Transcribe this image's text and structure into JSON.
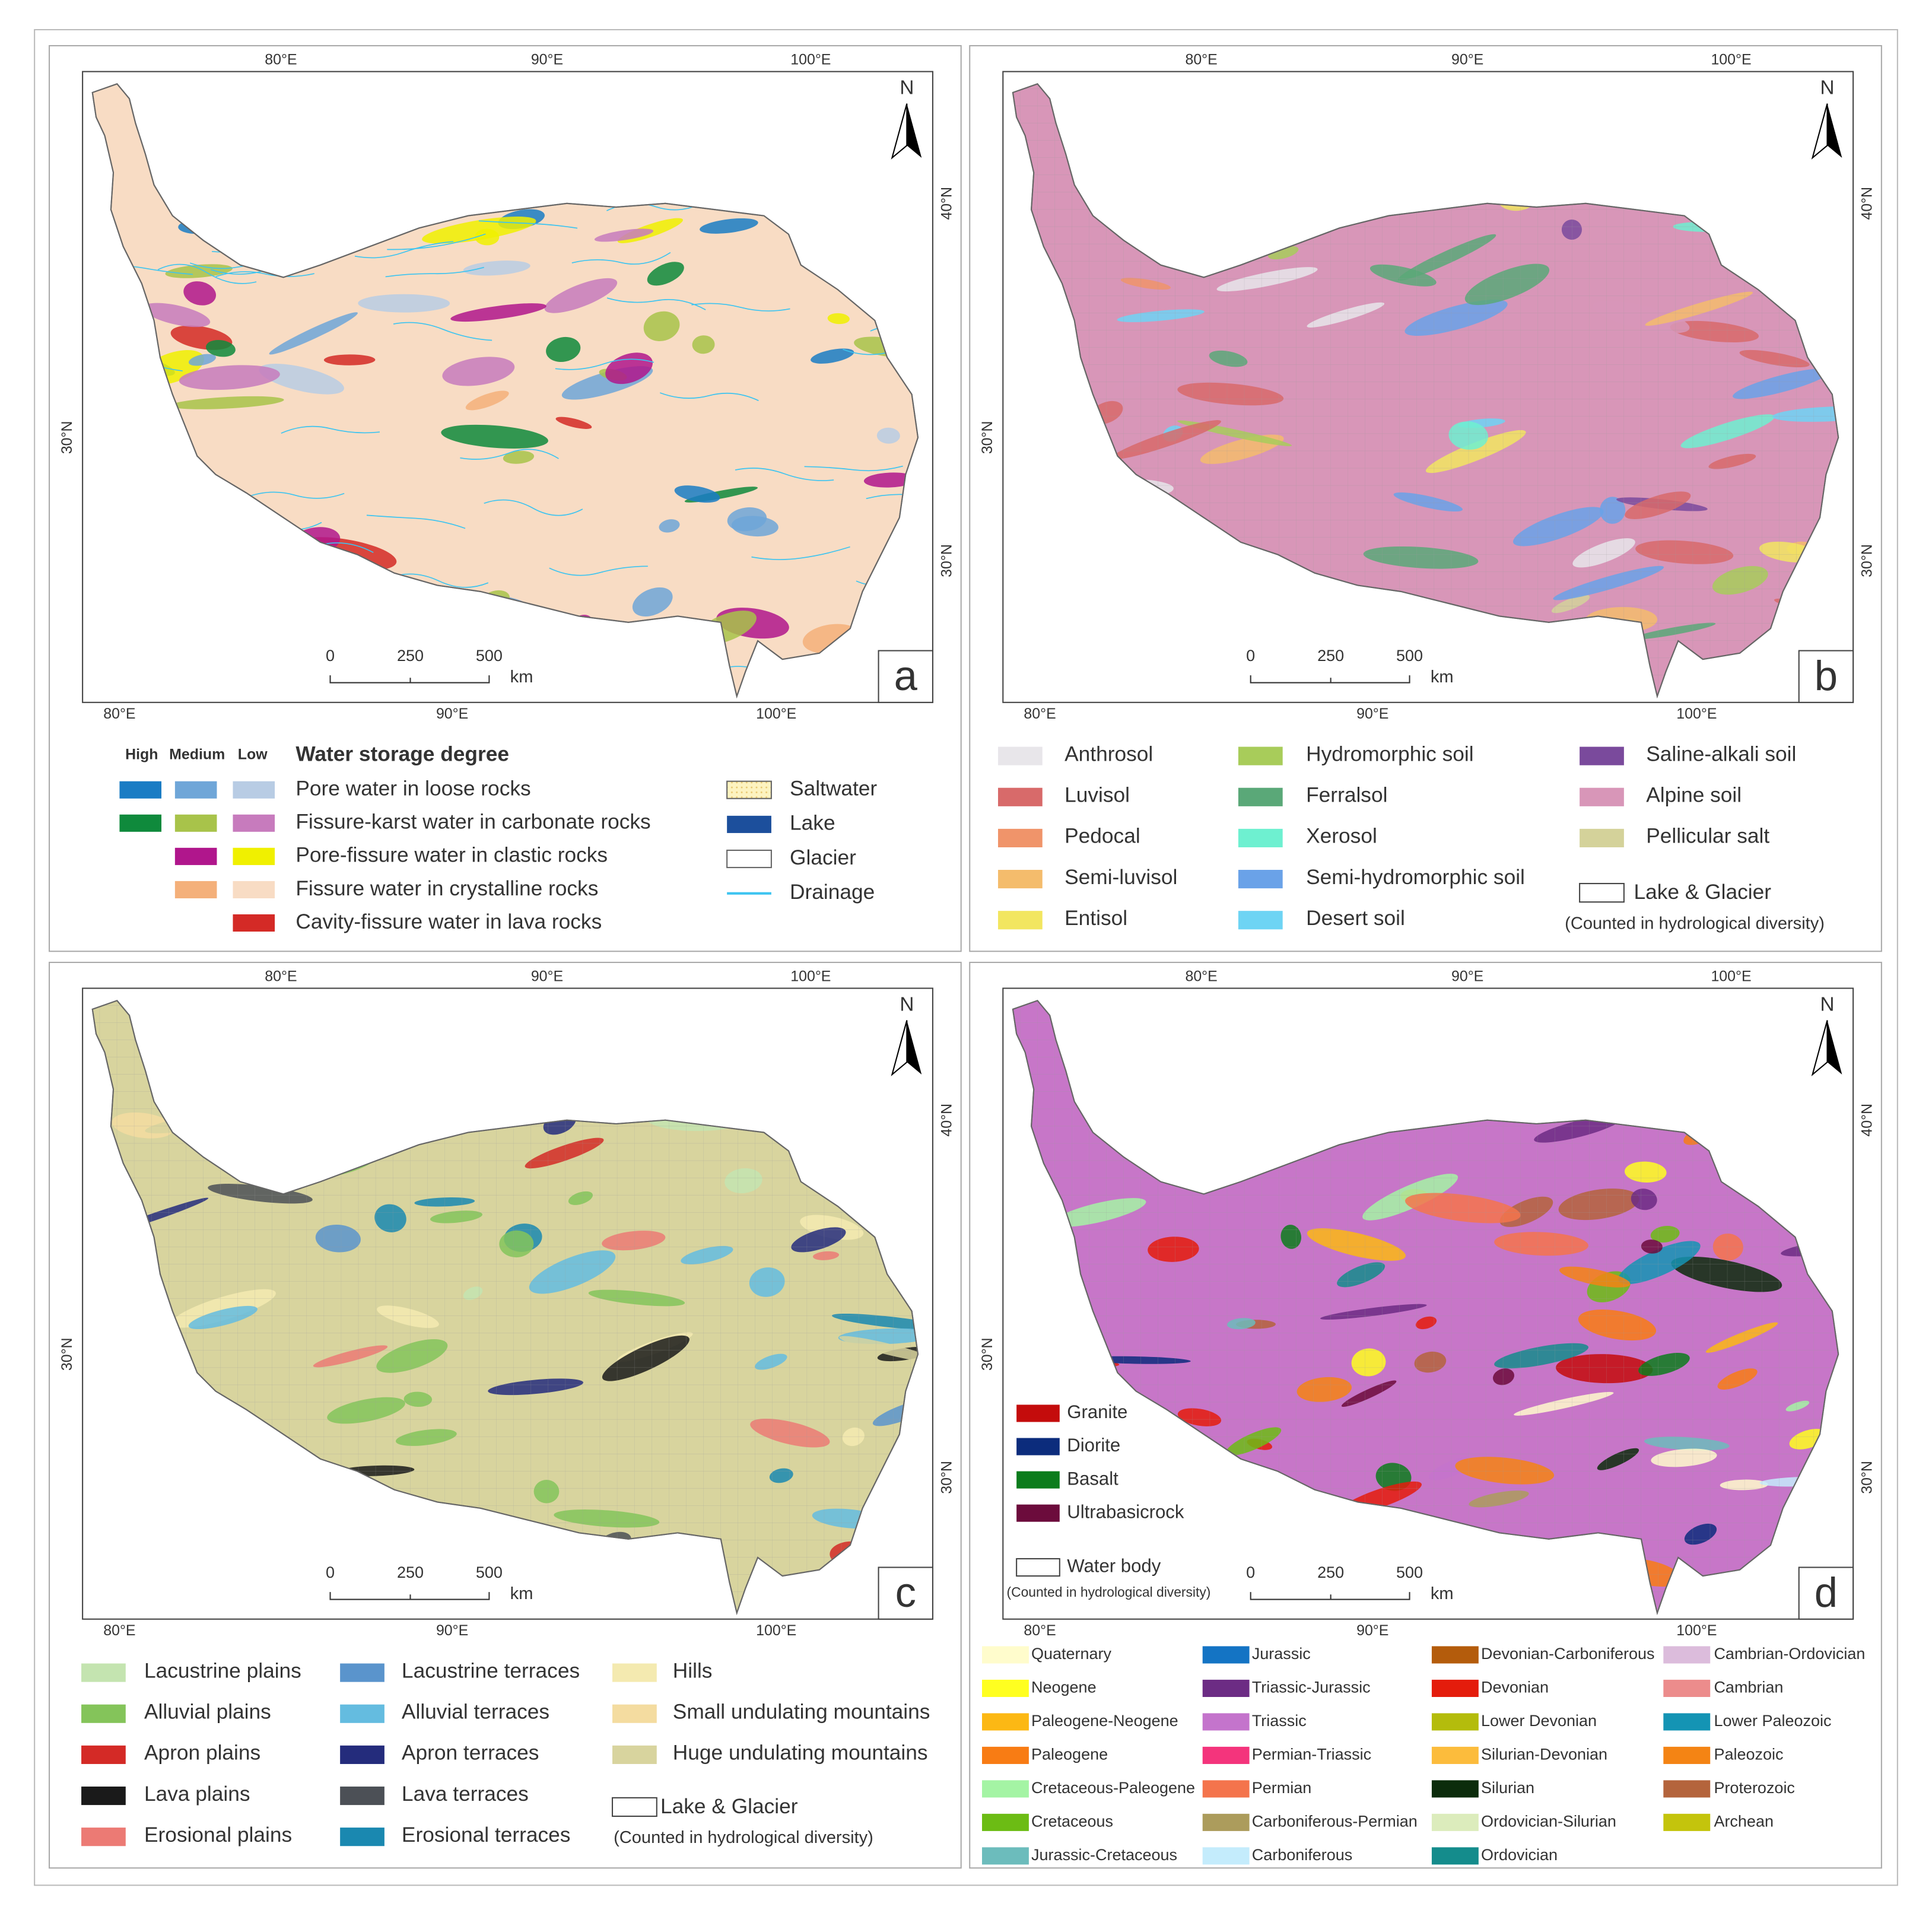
{
  "axes": {
    "top": [
      "80°E",
      "90°E",
      "100°E"
    ],
    "bottom": [
      "80°E",
      "90°E",
      "100°E"
    ],
    "left": [
      "30°N"
    ],
    "right": [
      "40°N",
      "30°N"
    ],
    "north": "N",
    "scale": [
      "0",
      "250",
      "500"
    ],
    "unit": "km"
  },
  "panels": [
    {
      "label": "a",
      "fill": "#f8dcc4",
      "legend": {
        "headers": [
          "High",
          "Medium",
          "Low"
        ],
        "title": "Water storage degree",
        "rows": [
          {
            "label": "Pore water in loose rocks",
            "colors": [
              "#1a7cc4",
              "#6fa6d8",
              "#b8cce4"
            ]
          },
          {
            "label": "Fissure-karst water in carbonate rocks",
            "colors": [
              "#0f8a3c",
              "#a8c34a",
              "#c77bbd"
            ]
          },
          {
            "label": "Pore-fissure water in clastic rocks",
            "colors": [
              null,
              "#b0168c",
              "#f0f000"
            ]
          },
          {
            "label": "Fissure water in crystalline rocks",
            "colors": [
              null,
              "#f4b07a",
              "#f8dcc4"
            ]
          },
          {
            "label": "Cavity-fissure water in lava rocks",
            "colors": [
              null,
              null,
              "#d42a26"
            ]
          }
        ],
        "extras": [
          {
            "label": "Saltwater",
            "color": "#fdf3c0",
            "style": "dots"
          },
          {
            "label": "Lake",
            "color": "#1c4f9c",
            "style": "fill"
          },
          {
            "label": "Glacier",
            "color": "#ffffff",
            "style": "outline"
          },
          {
            "label": "Drainage",
            "color": "#3cc4f0",
            "style": "line"
          }
        ]
      }
    },
    {
      "label": "b",
      "fill": "#d896b8",
      "legend": {
        "items": [
          {
            "label": "Anthrosol",
            "color": "#e8e6ea"
          },
          {
            "label": "Luvisol",
            "color": "#d86a6a"
          },
          {
            "label": "Pedocal",
            "color": "#f0946a"
          },
          {
            "label": "Semi-luvisol",
            "color": "#f4bc6c"
          },
          {
            "label": "Entisol",
            "color": "#f2e660"
          },
          {
            "label": "Hydromorphic soil",
            "color": "#a8cc5a"
          },
          {
            "label": "Ferralsol",
            "color": "#5aa878"
          },
          {
            "label": "Xerosol",
            "color": "#6ef0d0"
          },
          {
            "label": "Semi-hydromorphic soil",
            "color": "#6aa2e8"
          },
          {
            "label": "Desert soil",
            "color": "#6ed4f4"
          },
          {
            "label": "Saline-alkali soil",
            "color": "#7a4a9c"
          },
          {
            "label": "Alpine soil",
            "color": "#d896b8"
          },
          {
            "label": "Pellicular salt",
            "color": "#d4d29a"
          }
        ],
        "lake": "Lake & Glacier",
        "note": "(Counted in hydrological diversity)"
      }
    },
    {
      "label": "c",
      "fill": "#d8d49e",
      "legend": {
        "items": [
          {
            "label": "Lacustrine plains",
            "color": "#c4e4b0"
          },
          {
            "label": "Alluvial plains",
            "color": "#84c45a"
          },
          {
            "label": "Apron plains",
            "color": "#d42a26"
          },
          {
            "label": "Lava plains",
            "color": "#1a1a1a"
          },
          {
            "label": "Erosional plains",
            "color": "#ec7a74"
          },
          {
            "label": "Lacustrine terraces",
            "color": "#5a94cc"
          },
          {
            "label": "Alluvial terraces",
            "color": "#64bce0"
          },
          {
            "label": "Apron terraces",
            "color": "#242c7c"
          },
          {
            "label": "Lava terraces",
            "color": "#4c5056"
          },
          {
            "label": "Erosional terraces",
            "color": "#1a88b0"
          },
          {
            "label": "Hills",
            "color": "#f4eab0"
          },
          {
            "label": "Small undulating mountains",
            "color": "#f4dca0"
          },
          {
            "label": "Huge undulating mountains",
            "color": "#d8d49e"
          }
        ],
        "lake": "Lake & Glacier",
        "note": "(Counted in hydrological diversity)"
      }
    },
    {
      "label": "d",
      "fill": "#c776c8",
      "legend": {
        "rocks": [
          {
            "label": "Granite",
            "color": "#c40c0c"
          },
          {
            "label": "Diorite",
            "color": "#0c2c7c"
          },
          {
            "label": "Basalt",
            "color": "#0c7c1c"
          },
          {
            "label": "Ultrabasicrock",
            "color": "#6c0c3c"
          }
        ],
        "water": "Water body",
        "note": "(Counted in hydrological diversity)",
        "items": [
          {
            "label": "Quaternary",
            "color": "#fffccc"
          },
          {
            "label": "Neogene",
            "color": "#ffff20"
          },
          {
            "label": "Paleogene-Neogene",
            "color": "#fcb814"
          },
          {
            "label": "Paleogene",
            "color": "#f87c14"
          },
          {
            "label": "Cretaceous-Paleogene",
            "color": "#a4f4a4"
          },
          {
            "label": "Cretaceous",
            "color": "#6cbc14"
          },
          {
            "label": "Jurassic-Cretaceous",
            "color": "#6cbcbc"
          },
          {
            "label": "Jurassic",
            "color": "#1474c4"
          },
          {
            "label": "Triassic-Jurassic",
            "color": "#6c2c84"
          },
          {
            "label": "Triassic",
            "color": "#c474cc"
          },
          {
            "label": "Permian-Triassic",
            "color": "#f4347c"
          },
          {
            "label": "Permian",
            "color": "#f4744c"
          },
          {
            "label": "Carboniferous-Permian",
            "color": "#ac9c5c"
          },
          {
            "label": "Carboniferous",
            "color": "#c4ecfc"
          },
          {
            "label": "Devonian-Carboniferous",
            "color": "#b45c0c"
          },
          {
            "label": "Devonian",
            "color": "#e41c0c"
          },
          {
            "label": "Lower Devonian",
            "color": "#b4bc0c"
          },
          {
            "label": "Silurian-Devonian",
            "color": "#fcbc3c"
          },
          {
            "label": "Silurian",
            "color": "#0c2c0c"
          },
          {
            "label": "Ordovician-Silurian",
            "color": "#dcecbc"
          },
          {
            "label": "Ordovician",
            "color": "#148c8c"
          },
          {
            "label": "Cambrian-Ordovician",
            "color": "#dcbcdc"
          },
          {
            "label": "Cambrian",
            "color": "#ec8c8c"
          },
          {
            "label": "Lower Paleozoic",
            "color": "#1494b4"
          },
          {
            "label": "Paleozoic",
            "color": "#f48414"
          },
          {
            "label": "Proterozoic",
            "color": "#b4643c"
          },
          {
            "label": "Archean",
            "color": "#c4c40c"
          }
        ]
      }
    }
  ]
}
